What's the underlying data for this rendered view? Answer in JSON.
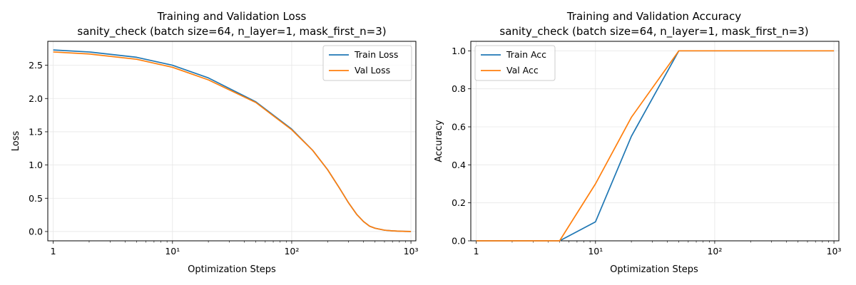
{
  "chart_data": [
    {
      "type": "line",
      "title": "Training and Validation Loss",
      "subtitle": "sanity_check (batch size=64, n_layer=1, mask_first_n=3)",
      "xlabel": "Optimization Steps",
      "ylabel": "Loss",
      "xscale": "log",
      "xlim": [
        0.9,
        1100
      ],
      "ylim": [
        -0.14,
        2.86
      ],
      "x_ticks": [
        1,
        10,
        100,
        1000
      ],
      "x_tick_labels": [
        "1",
        "10¹",
        "10²",
        "10³"
      ],
      "y_ticks": [
        0.0,
        0.5,
        1.0,
        1.5,
        2.0,
        2.5
      ],
      "y_tick_labels": [
        "0.0",
        "0.5",
        "1.0",
        "1.5",
        "2.0",
        "2.5"
      ],
      "grid": true,
      "legend_position": "upper-right",
      "series": [
        {
          "name": "Train Loss",
          "color": "#1f77b4",
          "x": [
            1,
            2,
            5,
            10,
            20,
            50,
            100,
            150,
            200,
            250,
            300,
            350,
            400,
            450,
            500,
            600,
            700,
            800,
            900,
            1000
          ],
          "y": [
            2.73,
            2.7,
            2.62,
            2.5,
            2.31,
            1.95,
            1.54,
            1.22,
            0.93,
            0.66,
            0.43,
            0.26,
            0.15,
            0.08,
            0.05,
            0.02,
            0.01,
            0.005,
            0.002,
            0.001
          ]
        },
        {
          "name": "Val Loss",
          "color": "#ff7f0e",
          "x": [
            1,
            2,
            5,
            10,
            20,
            50,
            100,
            150,
            200,
            250,
            300,
            350,
            400,
            450,
            500,
            600,
            700,
            800,
            900,
            1000
          ],
          "y": [
            2.7,
            2.67,
            2.59,
            2.47,
            2.28,
            1.94,
            1.53,
            1.22,
            0.93,
            0.66,
            0.43,
            0.26,
            0.15,
            0.08,
            0.05,
            0.02,
            0.01,
            0.005,
            0.002,
            0.001
          ]
        }
      ]
    },
    {
      "type": "line",
      "title": "Training and Validation Accuracy",
      "subtitle": "sanity_check (batch size=64, n_layer=1, mask_first_n=3)",
      "xlabel": "Optimization Steps",
      "ylabel": "Accuracy",
      "xscale": "log",
      "xlim": [
        0.9,
        1100
      ],
      "ylim": [
        0.0,
        1.05
      ],
      "x_ticks": [
        1,
        10,
        100,
        1000
      ],
      "x_tick_labels": [
        "1",
        "10¹",
        "10²",
        "10³"
      ],
      "y_ticks": [
        0.0,
        0.2,
        0.4,
        0.6,
        0.8,
        1.0
      ],
      "y_tick_labels": [
        "0.0",
        "0.2",
        "0.4",
        "0.6",
        "0.8",
        "1.0"
      ],
      "grid": true,
      "legend_position": "upper-left",
      "series": [
        {
          "name": "Train Acc",
          "color": "#1f77b4",
          "x": [
            1,
            2,
            5,
            10,
            20,
            50,
            100,
            200,
            500,
            1000
          ],
          "y": [
            0.0,
            0.0,
            0.0,
            0.1,
            0.55,
            1.0,
            1.0,
            1.0,
            1.0,
            1.0
          ]
        },
        {
          "name": "Val Acc",
          "color": "#ff7f0e",
          "x": [
            1,
            2,
            5,
            10,
            20,
            50,
            100,
            200,
            500,
            1000
          ],
          "y": [
            0.0,
            0.0,
            0.0,
            0.3,
            0.65,
            1.0,
            1.0,
            1.0,
            1.0,
            1.0
          ]
        }
      ]
    }
  ]
}
